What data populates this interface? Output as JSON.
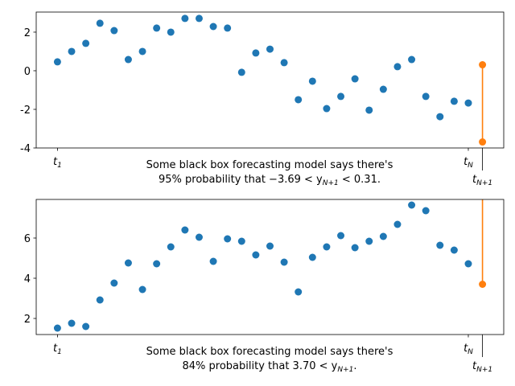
{
  "chart_data": [
    {
      "type": "scatter",
      "xlim": [
        -0.5,
        32.5
      ],
      "ylim": [
        -4,
        3.04
      ],
      "yticks": [
        -4,
        -2,
        0,
        2
      ],
      "xticks": [
        {
          "value": 1,
          "label": "t",
          "sub": "1"
        },
        {
          "value": 30,
          "label": "t",
          "sub": "N"
        },
        {
          "value": 31,
          "label": "t",
          "sub": "N+1"
        }
      ],
      "xlabel": {
        "line1": "Some black box forecasting model says there's",
        "line2": "95% probability that −3.69 < y",
        "sub": "N+1",
        "tail": " < 0.31."
      },
      "series": [
        {
          "color": "#1f77b4",
          "x": [
            1,
            2,
            3,
            4,
            5,
            6,
            7,
            8,
            9,
            10,
            11,
            12,
            13,
            14,
            15,
            16,
            17,
            18,
            19,
            20,
            21,
            22,
            23,
            24,
            25,
            26,
            27,
            28,
            29,
            30
          ],
          "values": [
            0.46,
            1.0,
            1.42,
            2.46,
            2.08,
            0.58,
            1.0,
            2.21,
            2.0,
            2.71,
            2.71,
            2.29,
            2.21,
            -0.08,
            0.92,
            1.12,
            0.42,
            -1.5,
            -0.54,
            -1.96,
            -1.33,
            -0.42,
            -2.04,
            -0.96,
            0.21,
            0.58,
            -1.33,
            -2.38,
            -1.58,
            -1.67
          ]
        },
        {
          "color": "#ff7f0e",
          "x": [
            31,
            31
          ],
          "values": [
            0.31,
            -3.69
          ]
        }
      ]
    },
    {
      "type": "scatter",
      "xlim": [
        -0.5,
        32.5
      ],
      "ylim": [
        1.2,
        7.92
      ],
      "yticks": [
        2,
        4,
        6
      ],
      "xticks": [
        {
          "value": 1,
          "label": "t",
          "sub": "1"
        },
        {
          "value": 30,
          "label": "t",
          "sub": "N"
        },
        {
          "value": 31,
          "label": "t",
          "sub": "N+1"
        }
      ],
      "xlabel": {
        "line1": "Some black box forecasting model says there's",
        "line2": "84% probability that 3.70 < y",
        "sub": "N+1",
        "tail": "."
      },
      "series": [
        {
          "color": "#1f77b4",
          "x": [
            1,
            2,
            3,
            4,
            5,
            6,
            7,
            8,
            9,
            10,
            11,
            12,
            13,
            14,
            15,
            16,
            17,
            18,
            19,
            20,
            21,
            22,
            23,
            24,
            25,
            26,
            27,
            28,
            29,
            30
          ],
          "values": [
            1.52,
            1.76,
            1.6,
            2.92,
            3.76,
            4.76,
            3.44,
            4.72,
            5.56,
            6.4,
            6.04,
            4.84,
            5.96,
            5.84,
            5.16,
            5.6,
            4.8,
            3.32,
            5.04,
            5.56,
            6.12,
            5.52,
            5.84,
            6.08,
            6.68,
            7.64,
            7.36,
            5.64,
            5.4,
            4.72
          ]
        },
        {
          "color": "#ff7f0e",
          "x": [
            31
          ],
          "values": [
            3.7
          ]
        }
      ]
    }
  ]
}
